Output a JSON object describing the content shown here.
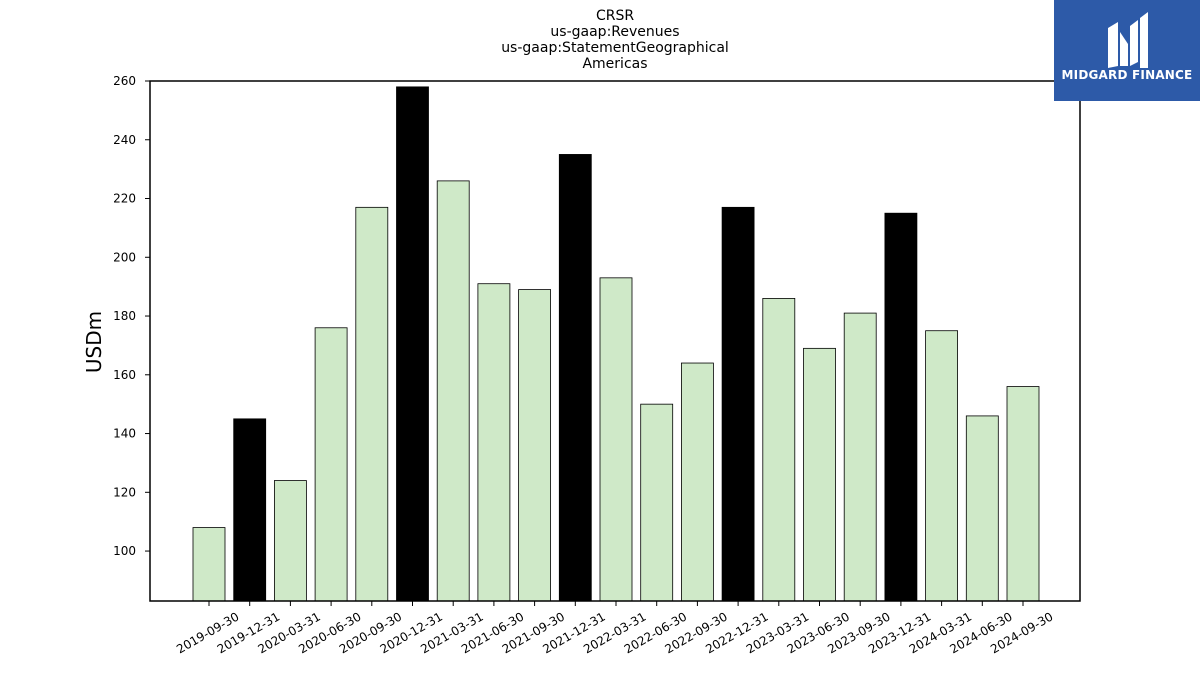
{
  "title_lines": [
    "CRSR",
    "us-gaap:Revenues",
    "us-gaap:StatementGeographical",
    "Americas"
  ],
  "logo": {
    "text": "MIDGARD FINANCE",
    "background": "#2d5aa8"
  },
  "chart_data": {
    "type": "bar",
    "ylabel": "USDm",
    "xlabel": "",
    "ylim": [
      83,
      260
    ],
    "yticks": [
      100,
      120,
      140,
      160,
      180,
      200,
      220,
      240,
      260
    ],
    "categories": [
      "2019-09-30",
      "2019-12-31",
      "2020-03-31",
      "2020-06-30",
      "2020-09-30",
      "2020-12-31",
      "2021-03-31",
      "2021-06-30",
      "2021-09-30",
      "2021-12-31",
      "2022-03-31",
      "2022-06-30",
      "2022-09-30",
      "2022-12-31",
      "2023-03-31",
      "2023-06-30",
      "2023-09-30",
      "2023-12-31",
      "2024-03-31",
      "2024-06-30",
      "2024-09-30"
    ],
    "values": [
      108,
      145,
      124,
      176,
      217,
      258,
      226,
      191,
      189,
      235,
      193,
      150,
      164,
      217,
      186,
      169,
      181,
      215,
      175,
      146,
      156
    ],
    "highlight": [
      false,
      true,
      false,
      false,
      false,
      true,
      false,
      false,
      false,
      true,
      false,
      false,
      false,
      true,
      false,
      false,
      false,
      true,
      false,
      false,
      false
    ],
    "colors": {
      "normal": "#cfe9c8",
      "highlight": "#000000",
      "edge": "#000000"
    }
  }
}
